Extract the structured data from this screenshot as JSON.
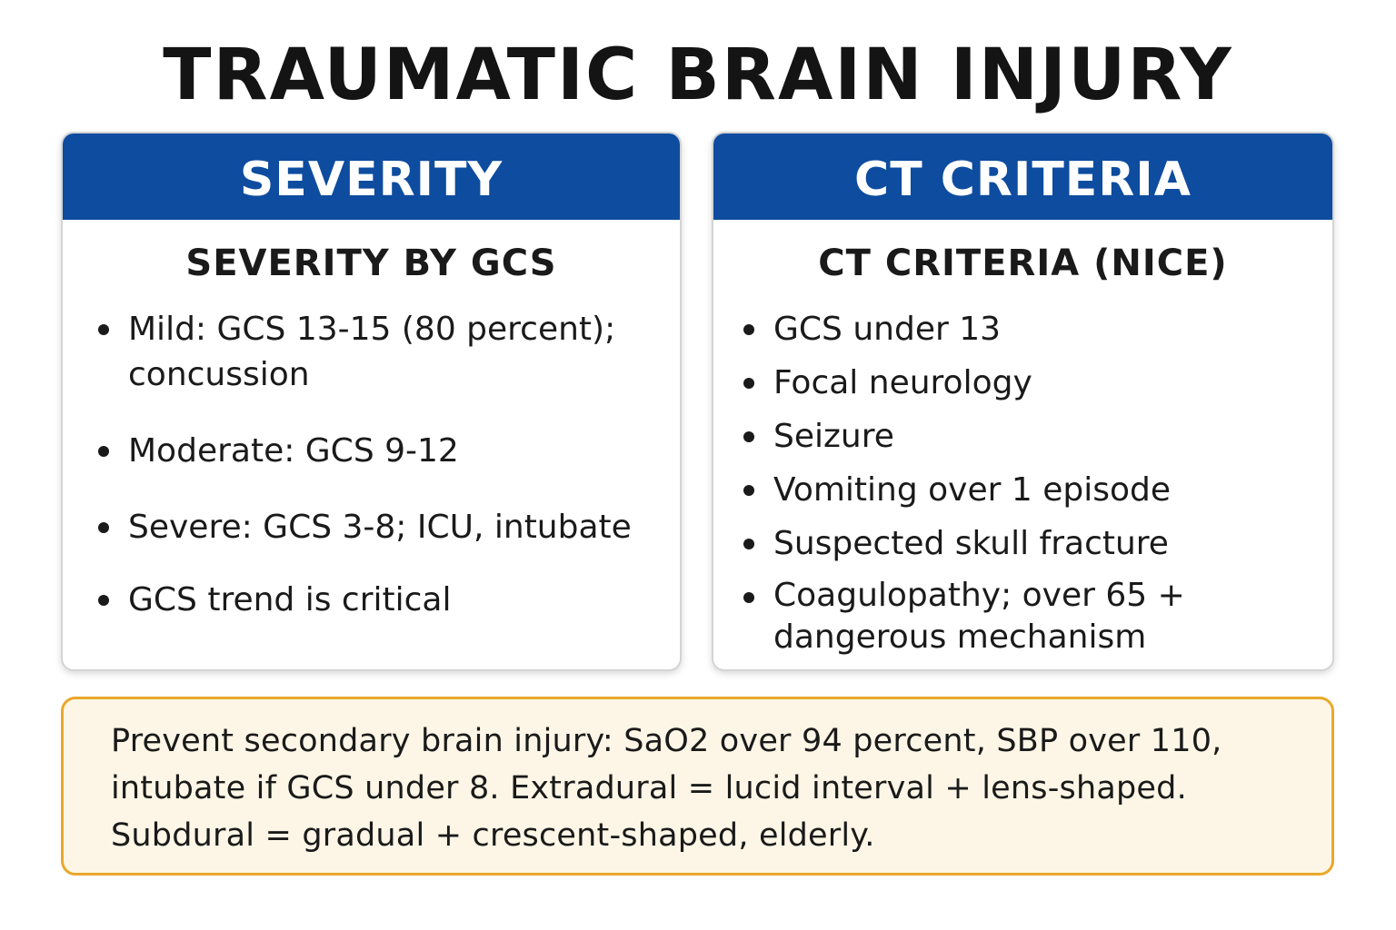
{
  "title": "TRAUMATIC BRAIN INJURY",
  "severity_card": {
    "header": "SEVERITY",
    "subtitle": "SEVERITY BY GCS",
    "items": [
      "Mild: GCS 13-15 (80 percent); concussion",
      "Moderate: GCS 9-12",
      "Severe: GCS 3-8; ICU, intubate",
      "GCS trend is critical"
    ]
  },
  "ct_card": {
    "header": "CT CRITERIA",
    "subtitle": "CT CRITERIA (NICE)",
    "items": [
      "GCS under 13",
      "Focal neurology",
      "Seizure",
      "Vomiting over 1 episode",
      "Suspected skull fracture",
      "Coagulopathy; over 65 + dangerous mechanism"
    ]
  },
  "note": "Prevent secondary brain injury: SaO2 over 94 percent, SBP over 110, intubate if GCS under 8. Extradural = lucid interval + lens-shaped. Subdural = gradual + crescent-shaped, elderly.",
  "colors": {
    "header_blue": "#0d4c9f",
    "note_border": "#e9a82b",
    "note_background": "#fdf6e6"
  }
}
